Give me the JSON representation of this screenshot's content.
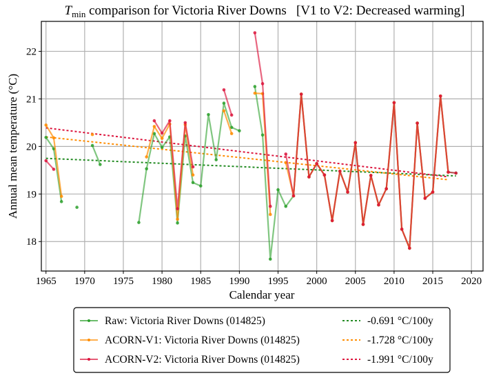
{
  "chart_data": {
    "type": "line",
    "title_main": "T",
    "title_sub": "min",
    "title_rest": " comparison for Victoria River Downs   [V1 to V2: Decreased warming]",
    "xlabel": "Calendar year",
    "ylabel": "Annual mean temperature (°C)",
    "xlim": [
      1964.4,
      2021.5
    ],
    "ylim": [
      17.38,
      22.63
    ],
    "xticks": [
      1965,
      1970,
      1975,
      1980,
      1985,
      1990,
      1995,
      2000,
      2005,
      2010,
      2015,
      2020
    ],
    "yticks": [
      18,
      19,
      20,
      21,
      22
    ],
    "grid": true,
    "legend_position": "below-center",
    "series": [
      {
        "name": "Raw: Victoria River Downs (014825)",
        "color": "#2ca02c",
        "points": [
          [
            1965,
            20.19
          ],
          [
            1966,
            19.95
          ],
          [
            1967,
            18.84
          ],
          [
            1968,
            null
          ],
          [
            1969,
            18.72
          ],
          [
            1970,
            null
          ],
          [
            1971,
            20.02
          ],
          [
            1972,
            19.62
          ],
          [
            1973,
            null
          ],
          [
            1977,
            18.4
          ],
          [
            1978,
            19.53
          ],
          [
            1979,
            20.27
          ],
          [
            1980,
            19.98
          ],
          [
            1981,
            20.2
          ],
          [
            1982,
            18.39
          ],
          [
            1983,
            20.22
          ],
          [
            1984,
            19.24
          ],
          [
            1985,
            19.17
          ],
          [
            1986,
            20.67
          ],
          [
            1987,
            19.72
          ],
          [
            1988,
            20.91
          ],
          [
            1989,
            20.4
          ],
          [
            1990,
            20.33
          ],
          [
            1991,
            null
          ],
          [
            1992,
            21.26
          ],
          [
            1993,
            20.24
          ],
          [
            1994,
            17.63
          ],
          [
            1995,
            19.09
          ],
          [
            1996,
            18.74
          ],
          [
            1997,
            18.96
          ],
          [
            1998,
            21.1
          ],
          [
            1999,
            19.36
          ],
          [
            2000,
            19.64
          ],
          [
            2001,
            19.4
          ],
          [
            2002,
            18.44
          ],
          [
            2003,
            19.48
          ],
          [
            2004,
            19.04
          ],
          [
            2005,
            20.08
          ],
          [
            2006,
            18.36
          ],
          [
            2007,
            19.39
          ],
          [
            2008,
            18.77
          ],
          [
            2009,
            19.11
          ],
          [
            2010,
            20.92
          ],
          [
            2011,
            18.26
          ],
          [
            2012,
            17.86
          ],
          [
            2013,
            20.49
          ],
          [
            2014,
            18.91
          ],
          [
            2015,
            19.04
          ],
          [
            2016,
            21.06
          ],
          [
            2017,
            19.46
          ],
          [
            2018,
            19.44
          ]
        ]
      },
      {
        "name": "ACORN-V1: Victoria River Downs (014825)",
        "color": "#ff8c00",
        "points": [
          [
            1965,
            20.45
          ],
          [
            1966,
            20.18
          ],
          [
            1967,
            18.95
          ],
          [
            1968,
            null
          ],
          [
            1971,
            20.25
          ],
          [
            1972,
            null
          ],
          [
            1978,
            19.78
          ],
          [
            1979,
            20.42
          ],
          [
            1980,
            20.17
          ],
          [
            1981,
            20.47
          ],
          [
            1982,
            18.47
          ],
          [
            1983,
            20.46
          ],
          [
            1984,
            19.4
          ],
          [
            1985,
            null
          ],
          [
            1988,
            20.75
          ],
          [
            1989,
            20.27
          ],
          [
            1990,
            null
          ],
          [
            1992,
            21.12
          ],
          [
            1993,
            21.11
          ],
          [
            1994,
            18.57
          ],
          [
            1995,
            null
          ],
          [
            1996,
            19.66
          ],
          [
            1997,
            18.96
          ],
          [
            1998,
            21.1
          ],
          [
            1999,
            19.36
          ],
          [
            2000,
            19.64
          ],
          [
            2001,
            19.4
          ],
          [
            2002,
            18.44
          ],
          [
            2003,
            19.48
          ],
          [
            2004,
            19.04
          ],
          [
            2005,
            20.08
          ],
          [
            2006,
            18.36
          ],
          [
            2007,
            19.39
          ],
          [
            2008,
            18.77
          ],
          [
            2009,
            19.11
          ],
          [
            2010,
            20.92
          ],
          [
            2011,
            18.26
          ],
          [
            2012,
            17.86
          ],
          [
            2013,
            20.49
          ],
          [
            2014,
            18.91
          ],
          [
            2015,
            19.04
          ],
          [
            2016,
            21.06
          ],
          [
            2017,
            19.46
          ]
        ]
      },
      {
        "name": "ACORN-V2: Victoria River Downs (014825)",
        "color": "#dc143c",
        "points": [
          [
            1965,
            19.7
          ],
          [
            1966,
            19.52
          ],
          [
            1967,
            null
          ],
          [
            1979,
            20.54
          ],
          [
            1980,
            20.28
          ],
          [
            1981,
            20.54
          ],
          [
            1982,
            18.69
          ],
          [
            1983,
            20.5
          ],
          [
            1984,
            19.57
          ],
          [
            1985,
            null
          ],
          [
            1988,
            21.19
          ],
          [
            1989,
            20.66
          ],
          [
            1990,
            null
          ],
          [
            1992,
            22.39
          ],
          [
            1993,
            21.32
          ],
          [
            1994,
            18.74
          ],
          [
            1995,
            null
          ],
          [
            1996,
            19.84
          ],
          [
            1997,
            18.96
          ],
          [
            1998,
            21.1
          ],
          [
            1999,
            19.36
          ],
          [
            2000,
            19.64
          ],
          [
            2001,
            19.4
          ],
          [
            2002,
            18.44
          ],
          [
            2003,
            19.48
          ],
          [
            2004,
            19.04
          ],
          [
            2005,
            20.08
          ],
          [
            2006,
            18.36
          ],
          [
            2007,
            19.39
          ],
          [
            2008,
            18.77
          ],
          [
            2009,
            19.11
          ],
          [
            2010,
            20.92
          ],
          [
            2011,
            18.26
          ],
          [
            2012,
            17.86
          ],
          [
            2013,
            20.49
          ],
          [
            2014,
            18.91
          ],
          [
            2015,
            19.04
          ],
          [
            2016,
            21.06
          ],
          [
            2017,
            19.46
          ],
          [
            2018,
            19.44
          ]
        ]
      }
    ],
    "trends": [
      {
        "name": "-0.691 °C/100y",
        "color": "#228b22",
        "x": [
          1965,
          2018
        ],
        "y": [
          19.75,
          19.38
        ]
      },
      {
        "name": "-1.728 °C/100y",
        "color": "#ff8c00",
        "x": [
          1965,
          2017
        ],
        "y": [
          20.2,
          19.3
        ]
      },
      {
        "name": "-1.991 °C/100y",
        "color": "#dc143c",
        "x": [
          1965,
          2017
        ],
        "y": [
          20.39,
          19.36
        ]
      }
    ],
    "shared_segment_color": "#d2452e"
  }
}
